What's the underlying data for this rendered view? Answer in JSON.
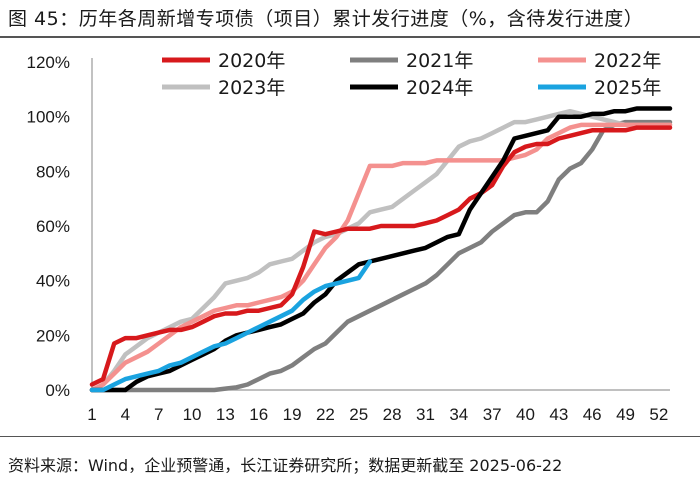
{
  "header": {
    "title": "图 45：历年各周新增专项债（项目）累计发行进度（%，含待发行进度）"
  },
  "footer": {
    "source": "资料来源：Wind，企业预警通，长江证券研究所；数据更新截至 2025-06-22"
  },
  "chart_data": {
    "type": "line",
    "title": "历年各周新增专项债（项目）累计发行进度（%，含待发行进度）",
    "xlabel": "",
    "ylabel": "",
    "xlim": [
      1,
      53
    ],
    "ylim": [
      0,
      120
    ],
    "x_ticks": [
      1,
      4,
      7,
      10,
      13,
      16,
      19,
      22,
      25,
      28,
      31,
      34,
      37,
      40,
      43,
      46,
      49,
      52
    ],
    "y_ticks": [
      0,
      20,
      40,
      60,
      80,
      100,
      120
    ],
    "y_tick_labels": [
      "0%",
      "20%",
      "40%",
      "60%",
      "80%",
      "100%",
      "120%"
    ],
    "legend_position": "top",
    "series": [
      {
        "name": "2021年",
        "color": "#7f7f7f",
        "x": [
          1,
          12,
          13,
          14,
          15,
          16,
          17,
          18,
          19,
          20,
          21,
          22,
          23,
          24,
          25,
          26,
          27,
          28,
          29,
          30,
          31,
          32,
          33,
          34,
          35,
          36,
          37,
          38,
          39,
          40,
          41,
          42,
          43,
          44,
          45,
          46,
          47,
          48,
          49,
          50,
          51,
          52,
          53
        ],
        "values": [
          0,
          0,
          0.5,
          1,
          2,
          4,
          6,
          7,
          9,
          12,
          15,
          17,
          21,
          25,
          27,
          29,
          31,
          33,
          35,
          37,
          39,
          42,
          46,
          50,
          52,
          54,
          58,
          61,
          64,
          65,
          65,
          69,
          77,
          81,
          83,
          88,
          95,
          97,
          98,
          98,
          98,
          98,
          98
        ]
      },
      {
        "name": "2023年",
        "color": "#c0c0c0",
        "x": [
          1,
          2,
          3,
          4,
          5,
          6,
          7,
          8,
          9,
          10,
          11,
          12,
          13,
          14,
          15,
          16,
          17,
          18,
          19,
          20,
          21,
          22,
          23,
          24,
          25,
          26,
          27,
          28,
          29,
          30,
          31,
          32,
          33,
          34,
          35,
          36,
          37,
          38,
          39,
          40,
          41,
          42,
          43,
          44,
          45,
          46,
          47,
          48,
          49,
          50,
          51,
          52,
          53
        ],
        "values": [
          0,
          2,
          7,
          13,
          16,
          19,
          21,
          23,
          25,
          26,
          30,
          34,
          39,
          40,
          41,
          43,
          46,
          47,
          48,
          51,
          54,
          56,
          57,
          59,
          61,
          65,
          66,
          67,
          70,
          73,
          76,
          79,
          84,
          89,
          91,
          92,
          94,
          96,
          98,
          98,
          99,
          100,
          101,
          102,
          101,
          100,
          99,
          98,
          97,
          97,
          97,
          97,
          97
        ]
      },
      {
        "name": "2022年",
        "color": "#f4918f",
        "x": [
          1,
          2,
          3,
          4,
          5,
          6,
          7,
          8,
          9,
          10,
          11,
          12,
          13,
          14,
          15,
          16,
          17,
          18,
          19,
          20,
          21,
          22,
          23,
          24,
          25,
          26,
          27,
          28,
          29,
          30,
          31,
          32,
          33,
          34,
          35,
          36,
          37,
          38,
          39,
          40,
          41,
          42,
          43,
          44,
          45,
          46,
          47,
          48,
          49,
          50,
          51,
          52,
          53
        ],
        "values": [
          0,
          2,
          6,
          10,
          12,
          14,
          17,
          20,
          23,
          25,
          27,
          29,
          30,
          31,
          31,
          32,
          33,
          34,
          36,
          40,
          46,
          52,
          56,
          62,
          72,
          82,
          82,
          82,
          83,
          83,
          83,
          84,
          84,
          84,
          84,
          84,
          84,
          84,
          85,
          86,
          88,
          92,
          94,
          96,
          97,
          97,
          97,
          97,
          97,
          97,
          97,
          97,
          97
        ]
      },
      {
        "name": "2020年",
        "color": "#d7191c",
        "x": [
          1,
          2,
          3,
          4,
          5,
          6,
          7,
          8,
          9,
          10,
          11,
          12,
          13,
          14,
          15,
          16,
          17,
          18,
          19,
          20,
          21,
          22,
          23,
          24,
          25,
          26,
          27,
          28,
          29,
          30,
          31,
          32,
          33,
          34,
          35,
          36,
          37,
          38,
          39,
          40,
          41,
          42,
          43,
          44,
          45,
          46,
          47,
          48,
          49,
          50,
          51,
          52,
          53
        ],
        "values": [
          2,
          4,
          17,
          19,
          19,
          20,
          21,
          22,
          22,
          23,
          25,
          27,
          28,
          28,
          29,
          29,
          30,
          31,
          35,
          45,
          58,
          57,
          58,
          59,
          59,
          59,
          60,
          60,
          60,
          60,
          61,
          62,
          64,
          66,
          70,
          72,
          75,
          82,
          87,
          89,
          90,
          90,
          92,
          93,
          94,
          95,
          95,
          95,
          95,
          96,
          96,
          96,
          96
        ]
      },
      {
        "name": "2024年",
        "color": "#000000",
        "x": [
          1,
          4,
          5,
          6,
          7,
          8,
          9,
          10,
          11,
          12,
          13,
          14,
          15,
          16,
          17,
          18,
          19,
          20,
          21,
          22,
          23,
          24,
          25,
          26,
          27,
          28,
          29,
          30,
          31,
          32,
          33,
          34,
          35,
          36,
          37,
          38,
          39,
          40,
          41,
          42,
          43,
          44,
          45,
          46,
          47,
          48,
          49,
          50,
          51,
          52,
          53
        ],
        "values": [
          0,
          0,
          3,
          5,
          6,
          7,
          9,
          11,
          13,
          15,
          18,
          20,
          21,
          22,
          23,
          24,
          26,
          28,
          32,
          35,
          40,
          43,
          46,
          47,
          48,
          49,
          50,
          51,
          52,
          54,
          56,
          57,
          66,
          72,
          78,
          84,
          92,
          93,
          94,
          95,
          100,
          100,
          100,
          101,
          101,
          102,
          102,
          103,
          103,
          103,
          103
        ]
      },
      {
        "name": "2025年",
        "color": "#1aa3e0",
        "x": [
          1,
          2,
          3,
          4,
          5,
          6,
          7,
          8,
          9,
          10,
          11,
          12,
          13,
          14,
          15,
          16,
          17,
          18,
          19,
          20,
          21,
          22,
          23,
          24,
          25,
          26
        ],
        "values": [
          0,
          0,
          2,
          4,
          5,
          6,
          7,
          9,
          10,
          12,
          14,
          16,
          17,
          19,
          21,
          23,
          25,
          27,
          29,
          33,
          36,
          38,
          39,
          40,
          41,
          47
        ]
      }
    ],
    "legend": [
      {
        "name": "2020年",
        "color": "#d7191c"
      },
      {
        "name": "2021年",
        "color": "#7f7f7f"
      },
      {
        "name": "2022年",
        "color": "#f4918f"
      },
      {
        "name": "2023年",
        "color": "#c0c0c0"
      },
      {
        "name": "2024年",
        "color": "#000000"
      },
      {
        "name": "2025年",
        "color": "#1aa3e0"
      }
    ]
  }
}
